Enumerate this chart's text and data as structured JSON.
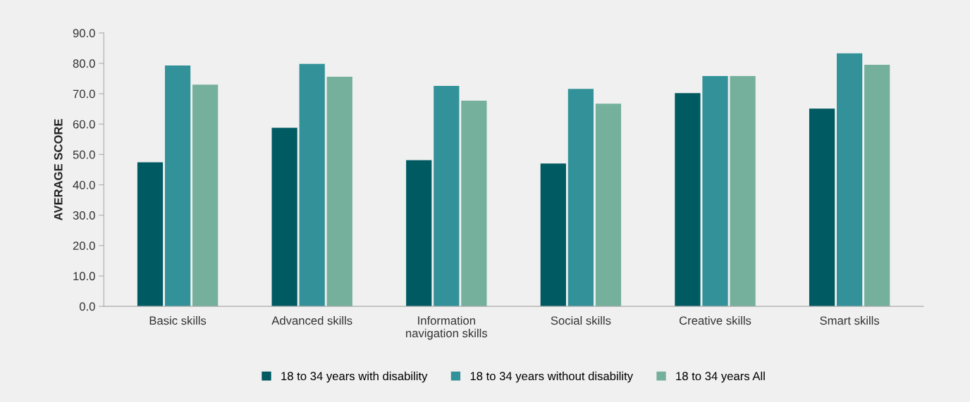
{
  "chart_data": {
    "type": "bar",
    "ylabel": "AVERAGE SCORE",
    "categories": [
      "Basic skills",
      "Advanced skills",
      "Information\nnavigation skills",
      "Social skills",
      "Creative skills",
      "Smart skills"
    ],
    "series": [
      {
        "name": "18 to 34 years with disability",
        "color": "#005a62",
        "values": [
          47.4,
          58.8,
          48.1,
          47.0,
          70.2,
          65.1
        ]
      },
      {
        "name": "18 to 34 years without disability",
        "color": "#339299",
        "values": [
          79.3,
          79.8,
          72.6,
          71.6,
          75.8,
          83.3
        ]
      },
      {
        "name": "18 to 34 years All",
        "color": "#74b09b",
        "values": [
          73.0,
          75.6,
          67.7,
          66.7,
          75.8,
          79.5
        ]
      }
    ],
    "ylim": [
      0,
      90
    ],
    "yticks": [
      {
        "value": 0,
        "label": "0.0"
      },
      {
        "value": 10,
        "label": "10.0"
      },
      {
        "value": 20,
        "label": "20.0"
      },
      {
        "value": 30,
        "label": "30.0"
      },
      {
        "value": 40,
        "label": "40.0"
      },
      {
        "value": 50,
        "label": "50.0"
      },
      {
        "value": 60,
        "label": "60.0"
      },
      {
        "value": 70,
        "label": "70.0"
      },
      {
        "value": 80,
        "label": "80.0"
      },
      {
        "value": 90,
        "label": "90.0"
      }
    ],
    "grid": false,
    "legend": "bottom"
  }
}
